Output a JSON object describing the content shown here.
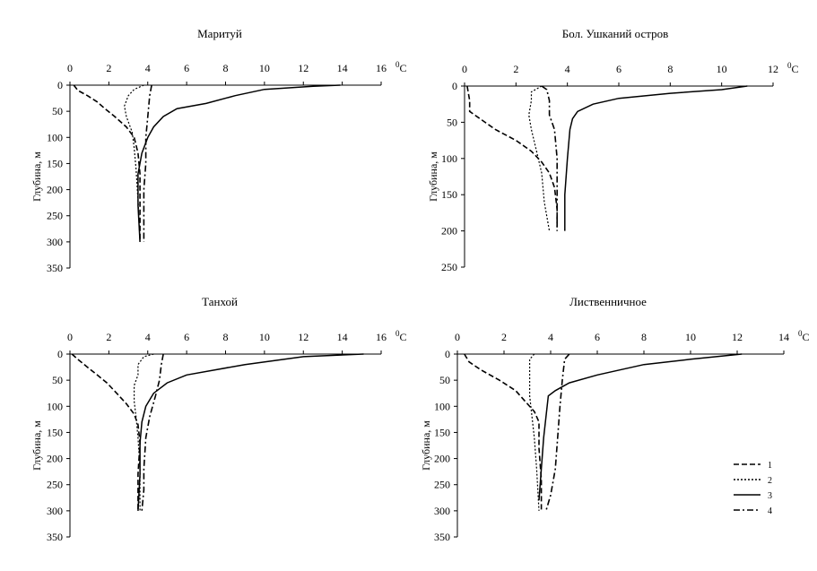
{
  "chart_data": [
    {
      "type": "line",
      "title": "Маритуй",
      "xlabel": "",
      "ylabel": "Глубина, м",
      "x_unit": "0C",
      "xlim": [
        0,
        16
      ],
      "ylim": [
        0,
        350
      ],
      "x_ticks": [
        "0",
        "2",
        "4",
        "6",
        "8",
        "10",
        "12",
        "14",
        "16"
      ],
      "y_ticks": [
        "0",
        "50",
        "100",
        "150",
        "200",
        "250",
        "300",
        "350"
      ],
      "y_inverted": true,
      "series": [
        {
          "style": "dash",
          "points": [
            [
              0.2,
              0
            ],
            [
              0.4,
              10
            ],
            [
              0.9,
              20
            ],
            [
              1.4,
              32
            ],
            [
              1.8,
              45
            ],
            [
              2.3,
              60
            ],
            [
              2.9,
              80
            ],
            [
              3.3,
              100
            ],
            [
              3.5,
              130
            ],
            [
              3.6,
              170
            ],
            [
              3.6,
              230
            ],
            [
              3.6,
              300
            ]
          ]
        },
        {
          "style": "dot",
          "points": [
            [
              3.8,
              0
            ],
            [
              3.3,
              8
            ],
            [
              3.0,
              20
            ],
            [
              2.8,
              40
            ],
            [
              2.9,
              60
            ],
            [
              3.2,
              90
            ],
            [
              3.3,
              120
            ],
            [
              3.4,
              160
            ],
            [
              3.5,
              220
            ],
            [
              3.6,
              300
            ]
          ]
        },
        {
          "style": "solid",
          "points": [
            [
              13.9,
              0
            ],
            [
              12.5,
              2
            ],
            [
              10.0,
              8
            ],
            [
              8.5,
              20
            ],
            [
              7.0,
              35
            ],
            [
              5.5,
              45
            ],
            [
              4.8,
              60
            ],
            [
              4.3,
              80
            ],
            [
              4.0,
              100
            ],
            [
              3.7,
              130
            ],
            [
              3.5,
              170
            ],
            [
              3.5,
              230
            ],
            [
              3.6,
              300
            ]
          ]
        },
        {
          "style": "dashdot",
          "points": [
            [
              4.2,
              0
            ],
            [
              4.1,
              20
            ],
            [
              4.0,
              60
            ],
            [
              3.9,
              100
            ],
            [
              3.9,
              150
            ],
            [
              3.8,
              200
            ],
            [
              3.8,
              260
            ],
            [
              3.8,
              300
            ]
          ]
        }
      ]
    },
    {
      "type": "line",
      "title": "Бол. Ушканий остров",
      "xlabel": "",
      "ylabel": "Глубина, м",
      "x_unit": "0C",
      "xlim": [
        0,
        12
      ],
      "ylim": [
        0,
        250
      ],
      "x_ticks": [
        "0",
        "2",
        "4",
        "6",
        "8",
        "10",
        "12"
      ],
      "y_ticks": [
        "0",
        "50",
        "100",
        "150",
        "200",
        "250"
      ],
      "y_inverted": true,
      "series": [
        {
          "style": "dash",
          "points": [
            [
              0.1,
              0
            ],
            [
              0.2,
              20
            ],
            [
              0.2,
              35
            ],
            [
              0.6,
              45
            ],
            [
              1.2,
              60
            ],
            [
              2.0,
              75
            ],
            [
              2.6,
              90
            ],
            [
              3.0,
              105
            ],
            [
              3.3,
              120
            ],
            [
              3.5,
              140
            ],
            [
              3.6,
              170
            ],
            [
              3.6,
              200
            ]
          ]
        },
        {
          "style": "dot",
          "points": [
            [
              3.0,
              0
            ],
            [
              2.6,
              8
            ],
            [
              2.6,
              20
            ],
            [
              2.5,
              40
            ],
            [
              2.6,
              60
            ],
            [
              2.8,
              90
            ],
            [
              3.0,
              120
            ],
            [
              3.1,
              160
            ],
            [
              3.3,
              200
            ]
          ]
        },
        {
          "style": "solid",
          "points": [
            [
              11.0,
              0
            ],
            [
              10.0,
              5
            ],
            [
              8.0,
              10
            ],
            [
              6.0,
              17
            ],
            [
              5.0,
              25
            ],
            [
              4.4,
              35
            ],
            [
              4.2,
              45
            ],
            [
              4.1,
              60
            ],
            [
              4.0,
              100
            ],
            [
              3.9,
              150
            ],
            [
              3.9,
              200
            ]
          ]
        },
        {
          "style": "dashdot",
          "points": [
            [
              3.0,
              0
            ],
            [
              3.2,
              5
            ],
            [
              3.3,
              20
            ],
            [
              3.3,
              40
            ],
            [
              3.5,
              60
            ],
            [
              3.6,
              100
            ],
            [
              3.6,
              150
            ],
            [
              3.6,
              200
            ]
          ]
        }
      ]
    },
    {
      "type": "line",
      "title": "Танхой",
      "xlabel": "",
      "ylabel": "Глубина, м",
      "x_unit": "0C",
      "xlim": [
        0,
        16
      ],
      "ylim": [
        0,
        350
      ],
      "x_ticks": [
        "0",
        "2",
        "4",
        "6",
        "8",
        "10",
        "12",
        "14",
        "16"
      ],
      "y_ticks": [
        "0",
        "50",
        "100",
        "150",
        "200",
        "250",
        "300",
        "350"
      ],
      "y_inverted": true,
      "series": [
        {
          "style": "dash",
          "points": [
            [
              0.1,
              0
            ],
            [
              0.4,
              10
            ],
            [
              0.9,
              25
            ],
            [
              1.4,
              40
            ],
            [
              1.9,
              55
            ],
            [
              2.4,
              75
            ],
            [
              2.9,
              95
            ],
            [
              3.3,
              115
            ],
            [
              3.5,
              135
            ],
            [
              3.6,
              170
            ],
            [
              3.5,
              230
            ],
            [
              3.5,
              300
            ]
          ]
        },
        {
          "style": "dot",
          "points": [
            [
              4.3,
              0
            ],
            [
              3.8,
              5
            ],
            [
              3.5,
              20
            ],
            [
              3.5,
              40
            ],
            [
              3.3,
              60
            ],
            [
              3.3,
              90
            ],
            [
              3.4,
              120
            ],
            [
              3.5,
              160
            ],
            [
              3.6,
              220
            ],
            [
              3.6,
              300
            ]
          ]
        },
        {
          "style": "solid",
          "points": [
            [
              15.1,
              0
            ],
            [
              12.0,
              5
            ],
            [
              9.0,
              20
            ],
            [
              7.5,
              30
            ],
            [
              6.0,
              40
            ],
            [
              5.0,
              55
            ],
            [
              4.3,
              75
            ],
            [
              3.9,
              100
            ],
            [
              3.7,
              130
            ],
            [
              3.6,
              170
            ],
            [
              3.6,
              230
            ],
            [
              3.5,
              300
            ]
          ]
        },
        {
          "style": "dashdot",
          "points": [
            [
              4.8,
              0
            ],
            [
              4.7,
              20
            ],
            [
              4.6,
              50
            ],
            [
              4.4,
              80
            ],
            [
              4.1,
              120
            ],
            [
              3.9,
              160
            ],
            [
              3.8,
              220
            ],
            [
              3.8,
              260
            ],
            [
              3.7,
              300
            ]
          ]
        }
      ]
    },
    {
      "type": "line",
      "title": "Лиственничное",
      "xlabel": "",
      "ylabel": "Глубина, м",
      "x_unit": "0C",
      "xlim": [
        0,
        14
      ],
      "ylim": [
        0,
        350
      ],
      "x_ticks": [
        "0",
        "2",
        "4",
        "6",
        "8",
        "10",
        "12",
        "14"
      ],
      "y_ticks": [
        "0",
        "50",
        "100",
        "150",
        "200",
        "250",
        "300",
        "350"
      ],
      "y_inverted": true,
      "series": [
        {
          "style": "dash",
          "points": [
            [
              0.3,
              0
            ],
            [
              0.5,
              15
            ],
            [
              1.0,
              30
            ],
            [
              1.8,
              50
            ],
            [
              2.5,
              70
            ],
            [
              3.0,
              95
            ],
            [
              3.3,
              110
            ],
            [
              3.5,
              130
            ],
            [
              3.5,
              180
            ],
            [
              3.6,
              240
            ],
            [
              3.6,
              300
            ]
          ]
        },
        {
          "style": "dot",
          "points": [
            [
              3.3,
              0
            ],
            [
              3.1,
              10
            ],
            [
              3.1,
              40
            ],
            [
              3.1,
              80
            ],
            [
              3.2,
              120
            ],
            [
              3.3,
              160
            ],
            [
              3.4,
              220
            ],
            [
              3.5,
              300
            ]
          ]
        },
        {
          "style": "solid",
          "points": [
            [
              12.2,
              0
            ],
            [
              10.0,
              10
            ],
            [
              8.0,
              20
            ],
            [
              6.0,
              40
            ],
            [
              4.8,
              55
            ],
            [
              4.2,
              70
            ],
            [
              3.9,
              80
            ],
            [
              3.8,
              120
            ],
            [
              3.7,
              160
            ],
            [
              3.6,
              220
            ],
            [
              3.5,
              280
            ]
          ]
        },
        {
          "style": "dashdot",
          "points": [
            [
              4.8,
              0
            ],
            [
              4.6,
              10
            ],
            [
              4.5,
              50
            ],
            [
              4.4,
              100
            ],
            [
              4.3,
              160
            ],
            [
              4.2,
              220
            ],
            [
              4.0,
              270
            ],
            [
              3.8,
              300
            ]
          ]
        }
      ]
    }
  ],
  "legend": {
    "placement": "bottom-right",
    "entries": [
      {
        "label": "1",
        "style": "dash"
      },
      {
        "label": "2",
        "style": "dot"
      },
      {
        "label": "3",
        "style": "solid"
      },
      {
        "label": "4",
        "style": "dashdot"
      }
    ]
  }
}
